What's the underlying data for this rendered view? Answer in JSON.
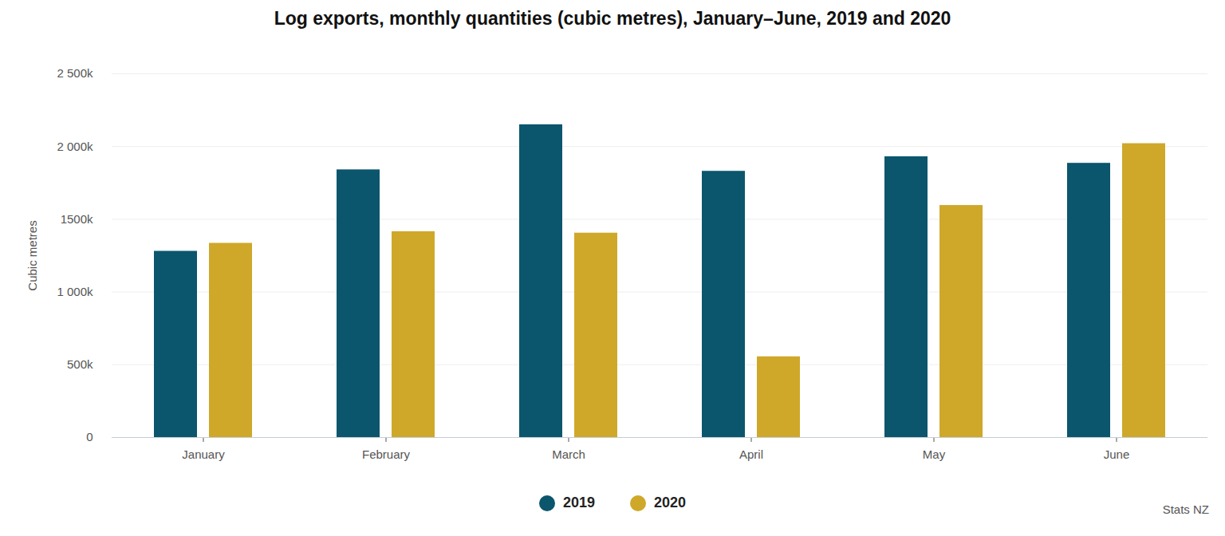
{
  "chart_data": {
    "type": "bar",
    "title": "Log exports, monthly quantities (cubic metres), January–June, 2019 and 2020",
    "y_label": "Cubic metres",
    "source": "Stats NZ",
    "categories": [
      "January",
      "February",
      "March",
      "April",
      "May",
      "June"
    ],
    "series": [
      {
        "name": "2019",
        "color": "#0b566d",
        "values": [
          1280000,
          1840000,
          2150000,
          1830000,
          1930000,
          1885000
        ]
      },
      {
        "name": "2020",
        "color": "#cfa82a",
        "values": [
          1335000,
          1415000,
          1405000,
          555000,
          1595000,
          2020000
        ]
      }
    ],
    "ylim": [
      0,
      2500000
    ],
    "yticks": [
      0,
      {
        "value": 500000,
        "label": "500k"
      },
      {
        "value": 1000000,
        "label": "1 000k"
      },
      {
        "value": 1500000,
        "label": "1500k"
      },
      {
        "value": 2000000,
        "label": "2 000k"
      },
      {
        "value": 2500000,
        "label": "2 500k"
      }
    ],
    "grid": true,
    "legend": "bottom"
  }
}
